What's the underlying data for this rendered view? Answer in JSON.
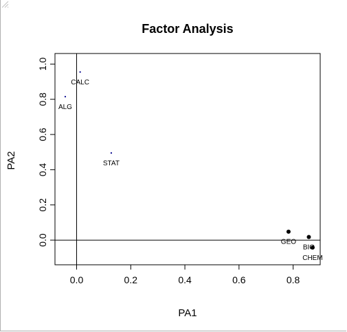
{
  "chart_data": {
    "type": "scatter",
    "title": "Factor Analysis",
    "xlabel": "PA1",
    "ylabel": "PA2",
    "xlim": [
      -0.08,
      0.9
    ],
    "ylim": [
      -0.14,
      1.06
    ],
    "xticks": [
      0.0,
      0.2,
      0.4,
      0.6,
      0.8
    ],
    "xtick_labels": [
      "0.0",
      "0.2",
      "0.4",
      "0.6",
      "0.8"
    ],
    "yticks": [
      0.0,
      0.2,
      0.4,
      0.6,
      0.8,
      1.0
    ],
    "ytick_labels": [
      "0.0",
      "0.2",
      "0.4",
      "0.6",
      "0.8",
      "1.0"
    ],
    "reference_lines": {
      "x": 0,
      "y": 0
    },
    "grid": false,
    "points": [
      {
        "label": "CALC",
        "x": 0.013,
        "y": 0.955,
        "size": "small",
        "color": "#00008b"
      },
      {
        "label": "ALG",
        "x": -0.042,
        "y": 0.815,
        "size": "small",
        "color": "#00008b"
      },
      {
        "label": "STAT",
        "x": 0.128,
        "y": 0.495,
        "size": "small",
        "color": "#00008b"
      },
      {
        "label": "GEO",
        "x": 0.783,
        "y": 0.048,
        "size": "large",
        "color": "#000000"
      },
      {
        "label": "BIO",
        "x": 0.858,
        "y": 0.018,
        "size": "large",
        "color": "#000000"
      },
      {
        "label": "CHEM",
        "x": 0.872,
        "y": -0.042,
        "size": "large",
        "color": "#000000"
      }
    ]
  }
}
